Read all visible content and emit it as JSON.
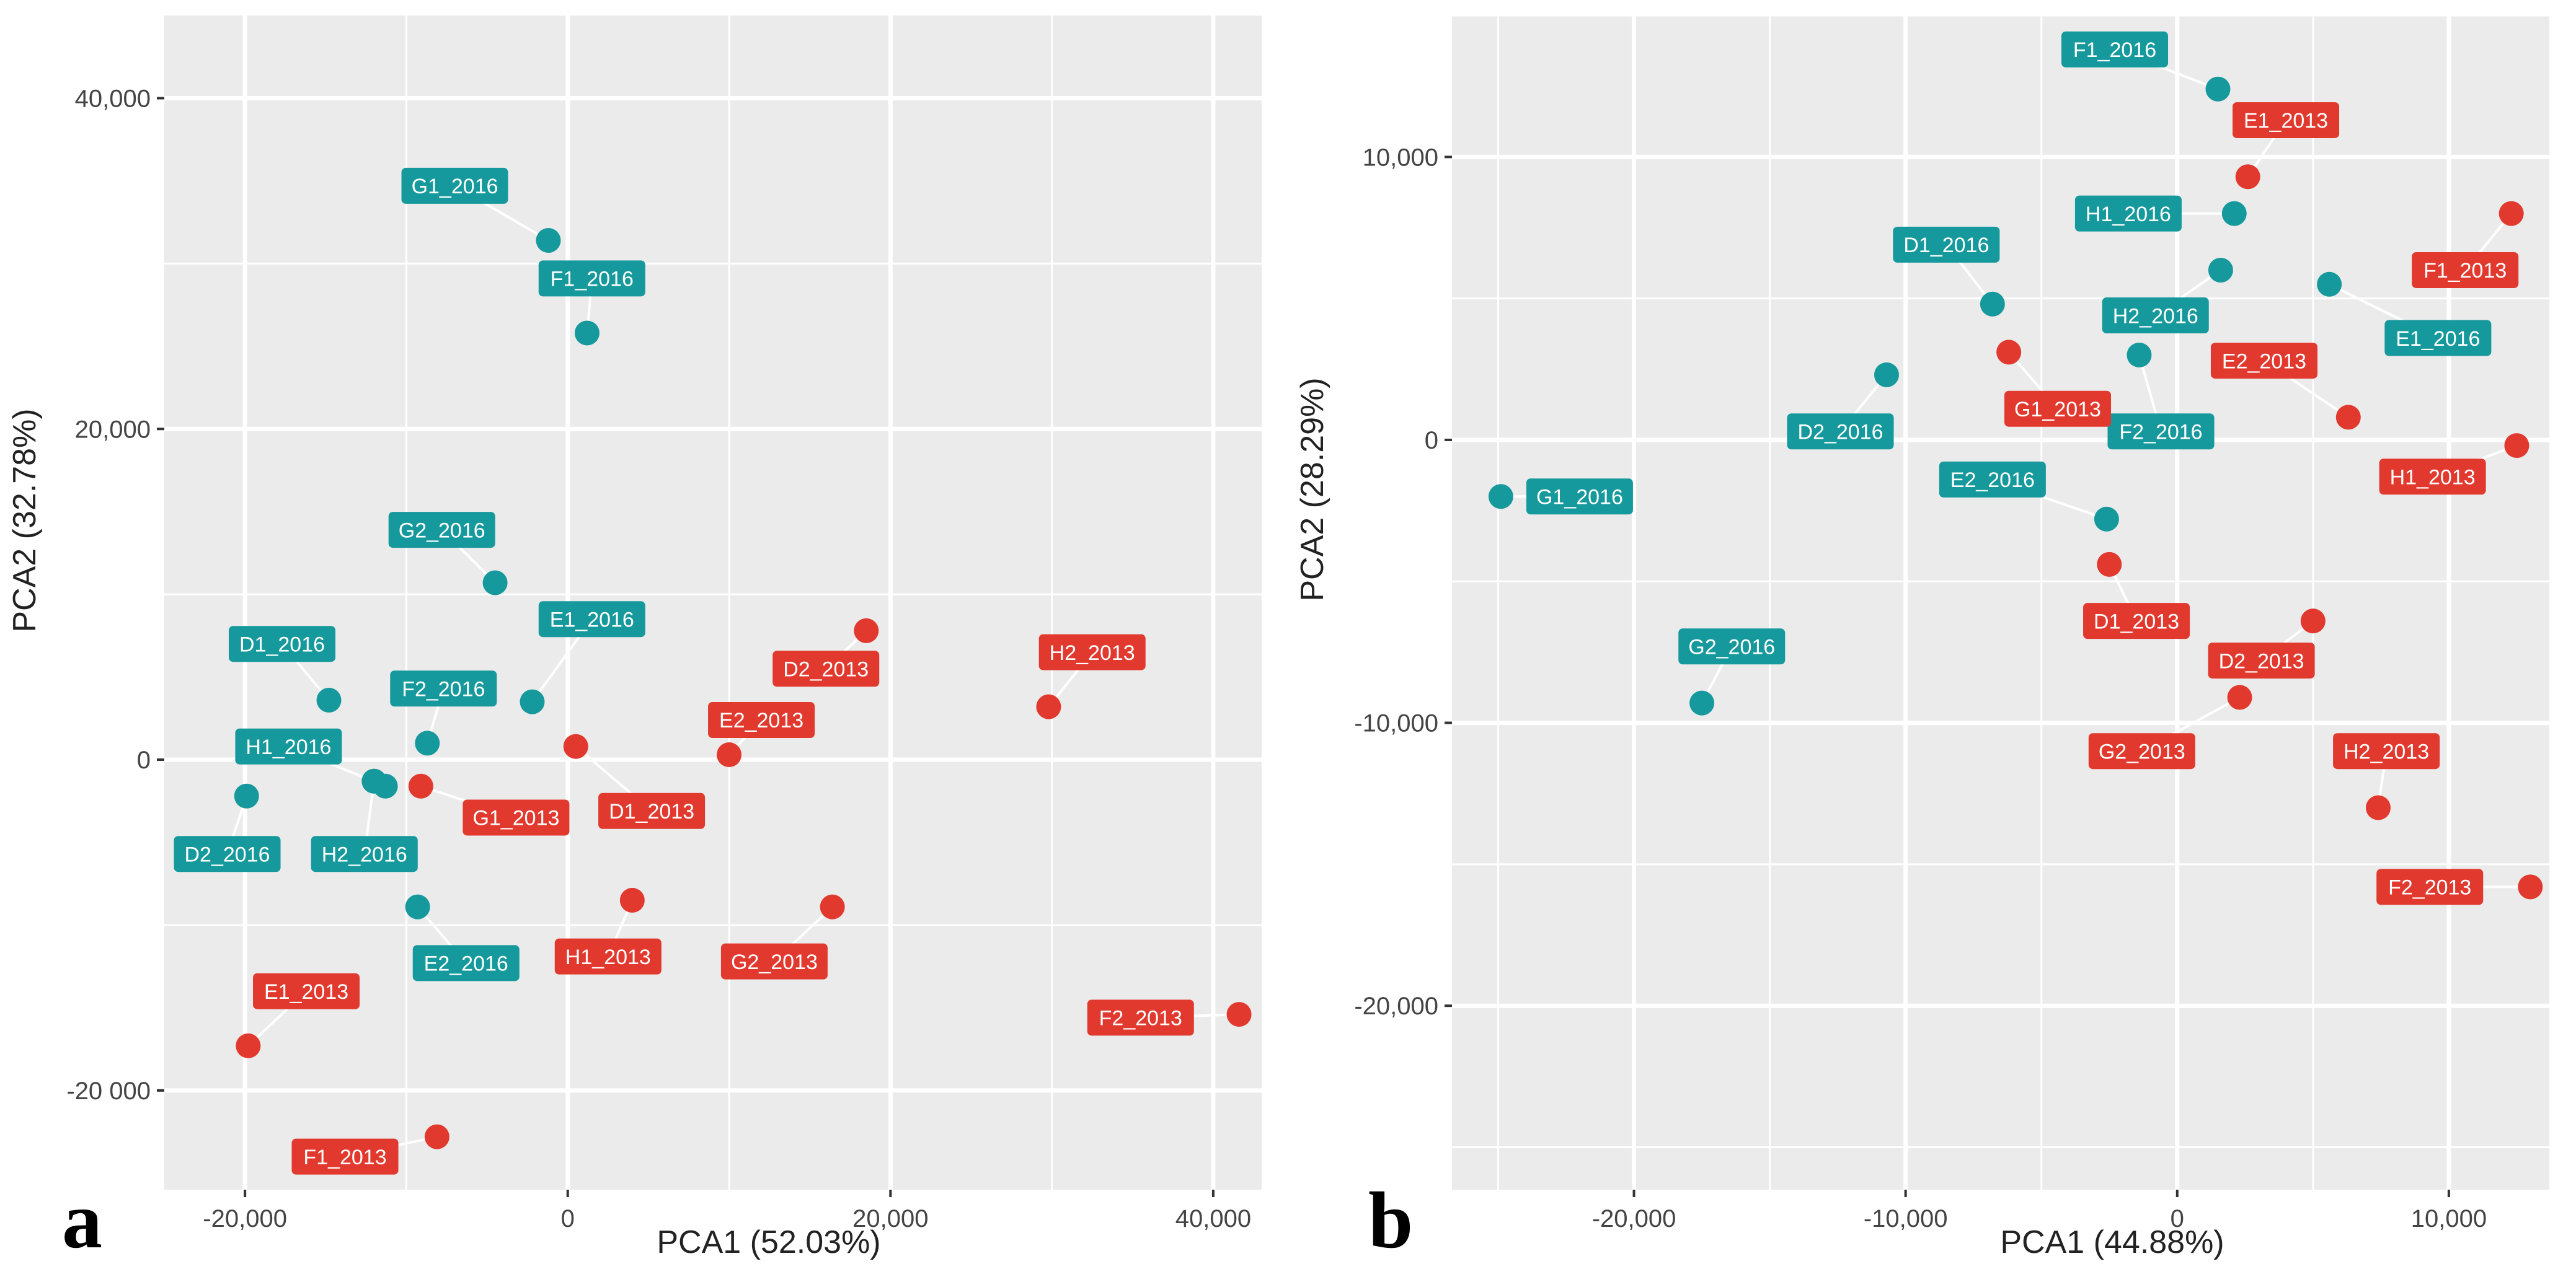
{
  "colors": {
    "teal": "#16999c",
    "red": "#e2392f",
    "panel_bg": "#ebebeb",
    "grid": "#ffffff",
    "tick": "#333333"
  },
  "chart_data": [
    {
      "id": "a",
      "type": "scatter",
      "panel_letter": "a",
      "xlabel": "PCA1 (52.03%)",
      "ylabel": "PCA2 (32.78%)",
      "xlim": [
        -25000,
        43000
      ],
      "ylim": [
        -26000,
        45000
      ],
      "xticks": [
        -20000,
        0,
        20000,
        40000
      ],
      "xtick_labels": [
        "-20,000",
        "0",
        "20,000",
        "40,000"
      ],
      "yticks": [
        -20000,
        0,
        20000,
        40000
      ],
      "ytick_labels": [
        "-20 000",
        "0",
        "20,000",
        "40,000"
      ],
      "series": [
        {
          "name": "2016",
          "color": "teal",
          "points": [
            {
              "label": "G1_2016",
              "x": -1200,
              "y": 31400,
              "lx": -7000,
              "ly": 34700
            },
            {
              "label": "F1_2016",
              "x": 1200,
              "y": 25800,
              "lx": 1500,
              "ly": 29100
            },
            {
              "label": "G2_2016",
              "x": -4500,
              "y": 10700,
              "lx": -7800,
              "ly": 13900
            },
            {
              "label": "E1_2016",
              "x": -2200,
              "y": 3500,
              "lx": 1500,
              "ly": 8500
            },
            {
              "label": "D1_2016",
              "x": -14800,
              "y": 3600,
              "lx": -17700,
              "ly": 7000
            },
            {
              "label": "F2_2016",
              "x": -8700,
              "y": 1000,
              "lx": -7700,
              "ly": 4300
            },
            {
              "label": "H1_2016",
              "x": -11300,
              "y": -1600,
              "lx": -17300,
              "ly": 800
            },
            {
              "label": "H1_2016_b",
              "display": false,
              "x": -12000,
              "y": -1300
            },
            {
              "label": "D2_2016",
              "x": -19900,
              "y": -2200,
              "lx": -21100,
              "ly": -5700
            },
            {
              "label": "H2_2016",
              "x": -12000,
              "y": -1300,
              "lx": -12600,
              "ly": -5700
            },
            {
              "label": "E2_2016",
              "x": -9300,
              "y": -8900,
              "lx": -6300,
              "ly": -12300
            }
          ]
        },
        {
          "name": "2013",
          "color": "red",
          "points": [
            {
              "label": "D2_2013",
              "x": 18500,
              "y": 7800,
              "lx": 16000,
              "ly": 5500
            },
            {
              "label": "H2_2013",
              "x": 29800,
              "y": 3200,
              "lx": 32500,
              "ly": 6500
            },
            {
              "label": "E2_2013",
              "x": 10000,
              "y": 300,
              "lx": 12000,
              "ly": 2400
            },
            {
              "label": "D1_2013",
              "x": 500,
              "y": 800,
              "lx": 5200,
              "ly": -3100
            },
            {
              "label": "G1_2013",
              "x": -9100,
              "y": -1600,
              "lx": -3200,
              "ly": -3500
            },
            {
              "label": "H1_2013",
              "x": 4000,
              "y": -8500,
              "lx": 2500,
              "ly": -11900
            },
            {
              "label": "G2_2013",
              "x": 16400,
              "y": -8900,
              "lx": 12800,
              "ly": -12200
            },
            {
              "label": "F2_2013",
              "x": 41600,
              "y": -15400,
              "lx": 35500,
              "ly": -15600
            },
            {
              "label": "E1_2013",
              "x": -19800,
              "y": -17300,
              "lx": -16200,
              "ly": -14000
            },
            {
              "label": "F1_2013",
              "x": -8100,
              "y": -22800,
              "lx": -13800,
              "ly": -24000
            }
          ]
        }
      ]
    },
    {
      "id": "b",
      "type": "scatter",
      "panel_letter": "b",
      "xlabel": "PCA1 (44.88%)",
      "ylabel": "PCA2 (28.29%)",
      "xlim": [
        -26700,
        13700
      ],
      "ylim": [
        -26500,
        15000
      ],
      "xticks": [
        -20000,
        -10000,
        0,
        10000
      ],
      "xtick_labels": [
        "-20,000",
        "-10,000",
        "0",
        "10,000"
      ],
      "yticks": [
        -20000,
        -10000,
        0,
        10000
      ],
      "ytick_labels": [
        "-20,000",
        "-10,000",
        "0",
        "10,000"
      ],
      "series": [
        {
          "name": "2016",
          "color": "teal",
          "points": [
            {
              "label": "F1_2016",
              "x": 1500,
              "y": 12400,
              "lx": -2300,
              "ly": 13800
            },
            {
              "label": "H1_2016",
              "x": 2100,
              "y": 8000,
              "lx": -1800,
              "ly": 8000
            },
            {
              "label": "E1_2016",
              "x": 5600,
              "y": 5500,
              "lx": 9600,
              "ly": 3600
            },
            {
              "label": "H2_2016",
              "x": 1600,
              "y": 6000,
              "lx": -800,
              "ly": 4400
            },
            {
              "label": "D1_2016",
              "x": -6800,
              "y": 4800,
              "lx": -8500,
              "ly": 6900
            },
            {
              "label": "F2_2016",
              "x": -1400,
              "y": 3000,
              "lx": -600,
              "ly": 300
            },
            {
              "label": "D2_2016",
              "x": -10700,
              "y": 2300,
              "lx": -12400,
              "ly": 300
            },
            {
              "label": "E2_2016",
              "x": -2600,
              "y": -2800,
              "lx": -6800,
              "ly": -1400
            },
            {
              "label": "G1_2016",
              "x": -24900,
              "y": -2000,
              "lx": -22000,
              "ly": -2000
            },
            {
              "label": "G2_2016",
              "x": -17500,
              "y": -9300,
              "lx": -16400,
              "ly": -7300
            }
          ]
        },
        {
          "name": "2013",
          "color": "red",
          "points": [
            {
              "label": "E1_2013",
              "x": 2600,
              "y": 9300,
              "lx": 4000,
              "ly": 11300
            },
            {
              "label": "F1_2013",
              "x": 12300,
              "y": 8000,
              "lx": 10600,
              "ly": 6000
            },
            {
              "label": "G1_2013",
              "x": -6200,
              "y": 3100,
              "lx": -4400,
              "ly": 1100
            },
            {
              "label": "E2_2013",
              "x": 6300,
              "y": 800,
              "lx": 3200,
              "ly": 2800
            },
            {
              "label": "H1_2013",
              "x": 12500,
              "y": -200,
              "lx": 9400,
              "ly": -1300
            },
            {
              "label": "D1_2013",
              "x": -2500,
              "y": -4400,
              "lx": -1500,
              "ly": -6400
            },
            {
              "label": "D2_2013",
              "x": 5000,
              "y": -6400,
              "lx": 3100,
              "ly": -7800
            },
            {
              "label": "G2_2013",
              "x": 2300,
              "y": -9100,
              "lx": -1300,
              "ly": -11000
            },
            {
              "label": "H2_2013",
              "x": 7400,
              "y": -13000,
              "lx": 7700,
              "ly": -11000
            },
            {
              "label": "F2_2013",
              "x": 13000,
              "y": -15800,
              "lx": 9300,
              "ly": -15800
            }
          ]
        }
      ]
    }
  ]
}
